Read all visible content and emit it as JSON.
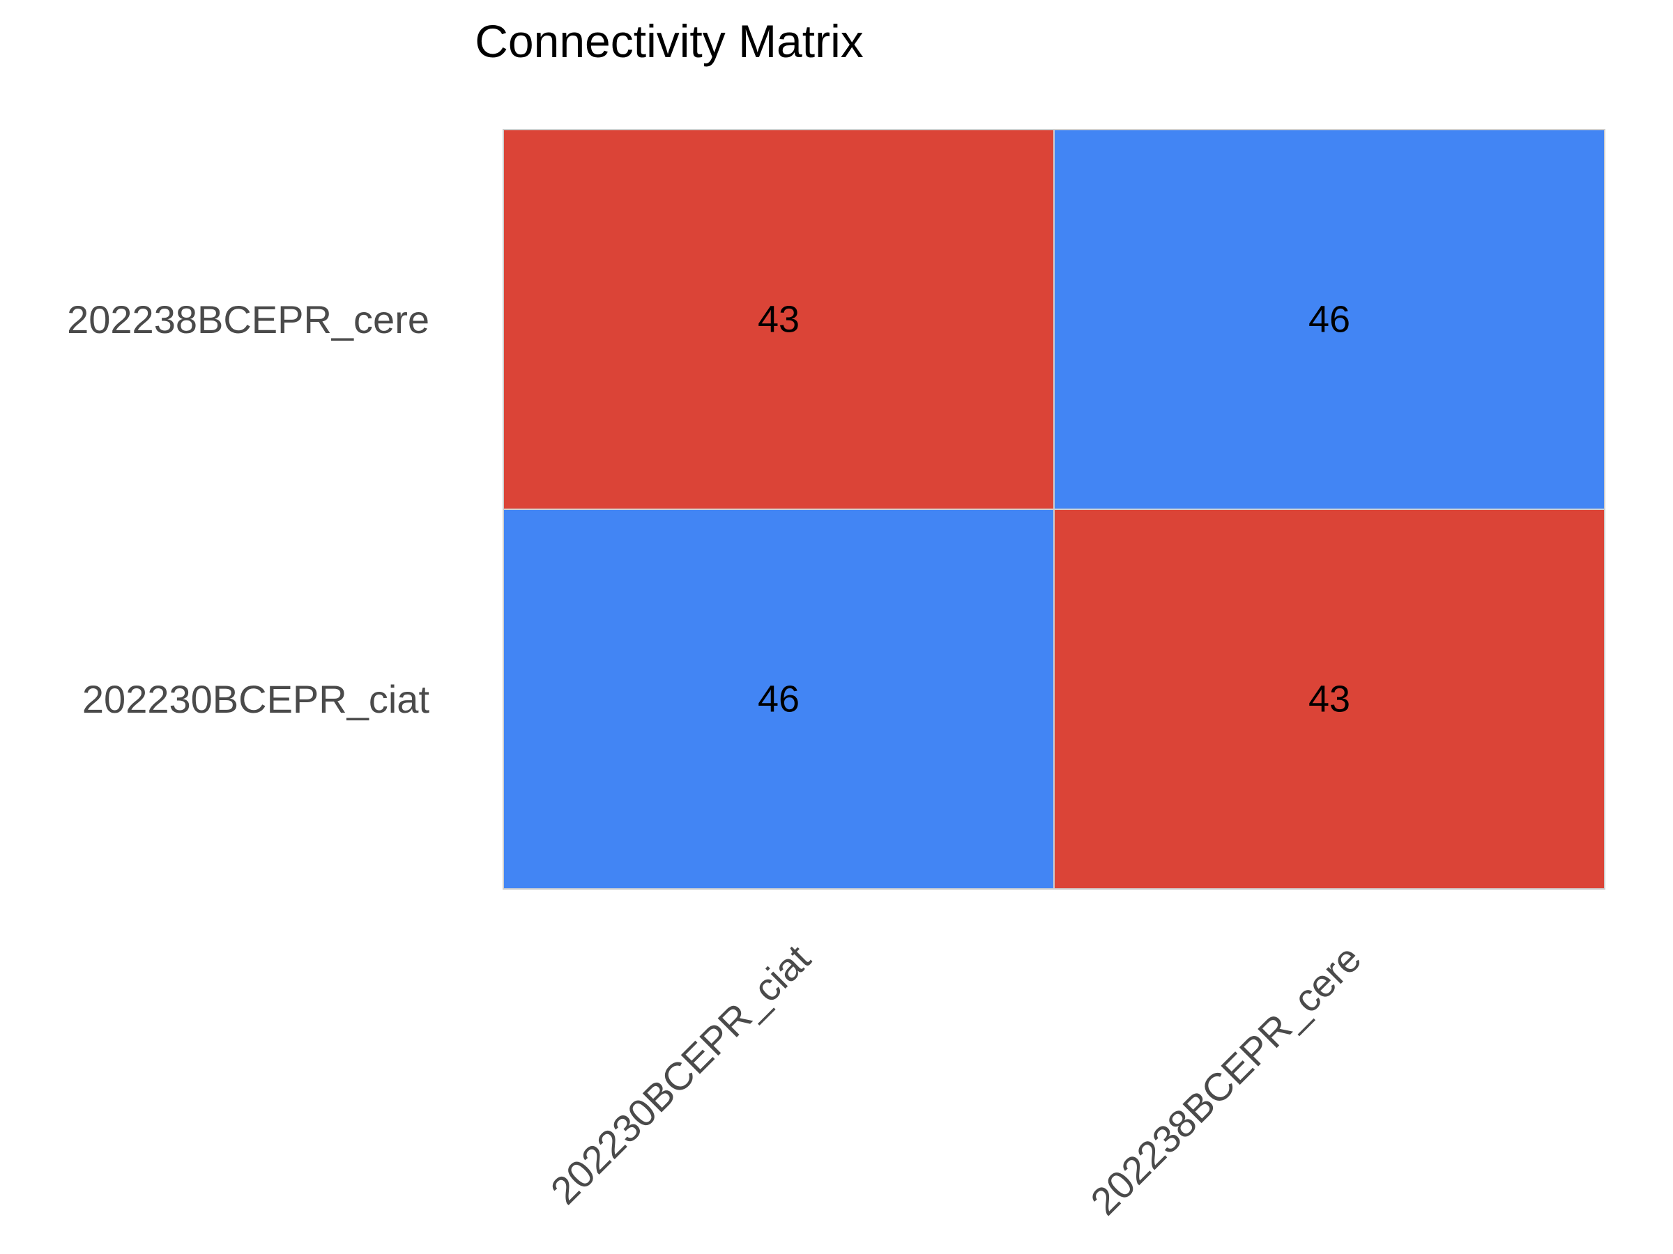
{
  "chart_data": {
    "type": "heatmap",
    "title": "Connectivity Matrix",
    "xlabel": "",
    "ylabel": "",
    "x_categories": [
      "202230BCEPR_ciat",
      "202238BCEPR_cere"
    ],
    "y_categories": [
      "202238BCEPR_cere",
      "202230BCEPR_ciat"
    ],
    "values": [
      [
        43,
        46
      ],
      [
        46,
        43
      ]
    ],
    "colors": {
      "low": "#db4437",
      "high": "#4285f4"
    },
    "grid": false,
    "legend": "none"
  }
}
